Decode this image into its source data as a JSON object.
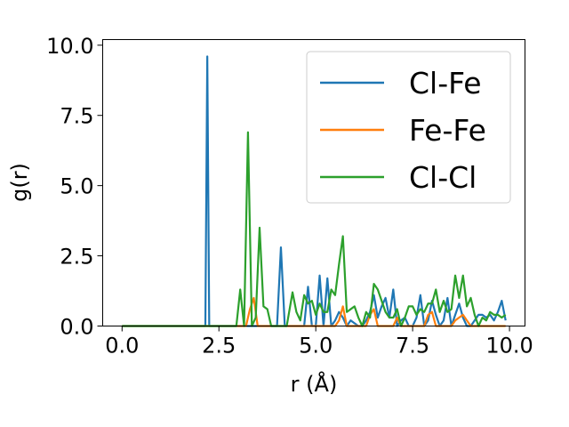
{
  "chart_data": {
    "type": "line",
    "title": "",
    "xlabel": "r (Å)",
    "ylabel": "g(r)",
    "xlim": [
      -0.5,
      10.4
    ],
    "ylim": [
      0,
      10.2
    ],
    "xticks": [
      0,
      2.5,
      5,
      7.5,
      10
    ],
    "xtick_labels": [
      "0.0",
      "2.5",
      "5.0",
      "7.5",
      "10.0"
    ],
    "yticks": [
      0,
      2.5,
      5,
      7.5,
      10
    ],
    "ytick_labels": [
      "0.0",
      "2.5",
      "5.0",
      "7.5",
      "10.0"
    ],
    "grid": false,
    "legend_position": "top-right",
    "series": [
      {
        "name": "Cl-Fe",
        "color": "#1f77b4",
        "x": [
          0.0,
          2.05,
          2.15,
          2.2,
          2.25,
          2.35,
          4.0,
          4.1,
          4.2,
          4.7,
          4.8,
          4.9,
          5.0,
          5.1,
          5.2,
          5.3,
          5.4,
          5.5,
          5.6,
          5.7,
          5.8,
          5.9,
          6.0,
          6.1,
          6.2,
          6.3,
          6.4,
          6.5,
          6.6,
          6.7,
          6.8,
          6.9,
          7.0,
          7.1,
          7.2,
          7.3,
          7.4,
          7.5,
          7.6,
          7.7,
          7.8,
          7.9,
          8.0,
          8.1,
          8.2,
          8.3,
          8.4,
          8.5,
          8.6,
          8.7,
          8.8,
          8.9,
          9.0,
          9.1,
          9.2,
          9.3,
          9.4,
          9.5,
          9.6,
          9.7,
          9.8,
          9.9
        ],
        "y": [
          0.0,
          0.0,
          0.0,
          9.6,
          0.0,
          0.0,
          0.0,
          2.8,
          0.0,
          0.0,
          1.4,
          0.0,
          0.0,
          1.8,
          0.0,
          1.7,
          0.0,
          0.2,
          0.5,
          0.3,
          0.0,
          0.2,
          0.1,
          0.0,
          0.0,
          0.2,
          0.5,
          1.1,
          0.3,
          0.7,
          1.0,
          0.3,
          1.3,
          0.0,
          0.2,
          0.3,
          0.0,
          0.0,
          0.3,
          1.1,
          0.0,
          0.2,
          0.9,
          0.4,
          0.0,
          0.2,
          1.0,
          0.0,
          0.4,
          0.8,
          0.3,
          0.0,
          0.0,
          0.2,
          0.4,
          0.4,
          0.3,
          0.4,
          0.2,
          0.5,
          0.9,
          0.2
        ]
      },
      {
        "name": "Fe-Fe",
        "color": "#ff7f0e",
        "x": [
          0.0,
          3.2,
          3.3,
          3.4,
          3.5,
          5.5,
          5.6,
          5.7,
          5.8,
          6.3,
          6.4,
          6.5,
          6.6,
          7.0,
          7.1,
          7.2,
          7.8,
          7.9,
          8.0,
          8.1,
          8.5,
          8.6,
          8.7,
          8.8,
          8.9,
          9.0,
          9.9
        ],
        "y": [
          0.0,
          0.0,
          0.6,
          1.0,
          0.0,
          0.0,
          0.2,
          0.7,
          0.0,
          0.0,
          0.4,
          0.6,
          0.0,
          0.0,
          0.3,
          0.0,
          0.0,
          0.4,
          0.5,
          0.0,
          0.0,
          0.2,
          0.3,
          0.4,
          0.2,
          0.0,
          0.0
        ]
      },
      {
        "name": "Cl-Cl",
        "color": "#2ca02c",
        "x": [
          0.0,
          2.95,
          3.05,
          3.15,
          3.25,
          3.35,
          3.45,
          3.55,
          3.65,
          3.75,
          3.85,
          3.95,
          4.1,
          4.25,
          4.4,
          4.5,
          4.6,
          4.7,
          4.8,
          4.9,
          5.0,
          5.1,
          5.2,
          5.3,
          5.4,
          5.5,
          5.6,
          5.7,
          5.8,
          5.9,
          6.0,
          6.1,
          6.2,
          6.3,
          6.4,
          6.5,
          6.6,
          6.7,
          6.8,
          6.9,
          7.0,
          7.1,
          7.2,
          7.3,
          7.4,
          7.5,
          7.6,
          7.7,
          7.8,
          7.9,
          8.0,
          8.1,
          8.2,
          8.3,
          8.4,
          8.5,
          8.6,
          8.7,
          8.8,
          8.9,
          9.0,
          9.1,
          9.2,
          9.3,
          9.4,
          9.5,
          9.6,
          9.7,
          9.8,
          9.9
        ],
        "y": [
          0.0,
          0.0,
          1.3,
          0.0,
          6.9,
          0.0,
          0.3,
          3.5,
          0.7,
          0.6,
          0.0,
          0.0,
          0.0,
          0.0,
          1.2,
          0.5,
          0.2,
          1.1,
          0.8,
          0.9,
          0.4,
          0.8,
          0.5,
          0.5,
          1.3,
          1.1,
          2.2,
          3.2,
          0.5,
          0.6,
          0.7,
          0.3,
          0.0,
          0.5,
          0.3,
          1.5,
          1.3,
          0.9,
          0.5,
          0.3,
          0.3,
          0.6,
          0.0,
          0.3,
          0.7,
          0.7,
          0.4,
          0.6,
          0.5,
          0.8,
          0.8,
          1.3,
          0.5,
          0.9,
          0.5,
          0.6,
          1.8,
          1.0,
          1.8,
          0.7,
          1.0,
          0.4,
          0.0,
          0.3,
          0.2,
          0.5,
          0.4,
          0.4,
          0.3,
          0.4
        ]
      }
    ]
  }
}
